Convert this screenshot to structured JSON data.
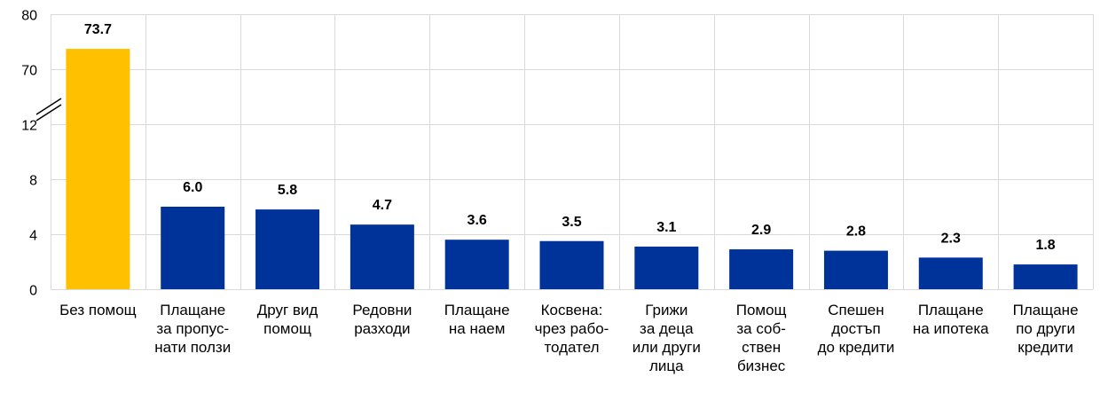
{
  "chart_data": {
    "type": "bar",
    "categories": [
      [
        "Без помощ"
      ],
      [
        "Плащане",
        "за пропус-",
        "нати ползи"
      ],
      [
        "Друг вид",
        "помощ"
      ],
      [
        "Редовни",
        "разходи"
      ],
      [
        "Плащане",
        "на наем"
      ],
      [
        "Косвена:",
        "чрез рабо-",
        "тодател"
      ],
      [
        "Грижи",
        "за деца",
        "или други",
        "лица"
      ],
      [
        "Помощ",
        "за соб-",
        "ствен",
        "бизнес"
      ],
      [
        "Спешен",
        "достъп",
        "до кредити"
      ],
      [
        "Плащане",
        "на ипотека"
      ],
      [
        "Плащане",
        "по други",
        "кредити"
      ]
    ],
    "values": [
      73.7,
      6.0,
      5.8,
      4.7,
      3.6,
      3.5,
      3.1,
      2.9,
      2.8,
      2.3,
      1.8
    ],
    "value_labels": [
      "73.7",
      "6.0",
      "5.8",
      "4.7",
      "3.6",
      "3.5",
      "3.1",
      "2.9",
      "2.8",
      "2.3",
      "1.8"
    ],
    "colors": [
      "#FFC000",
      "#003399",
      "#003399",
      "#003399",
      "#003399",
      "#003399",
      "#003399",
      "#003399",
      "#003399",
      "#003399",
      "#003399"
    ],
    "y_axis": {
      "lower_segment": [
        0,
        12
      ],
      "upper_segment": [
        70,
        80
      ],
      "broken": true,
      "ticks": [
        "0",
        "4",
        "8",
        "12",
        "70",
        "80"
      ]
    },
    "grid": true,
    "legend": "none"
  }
}
